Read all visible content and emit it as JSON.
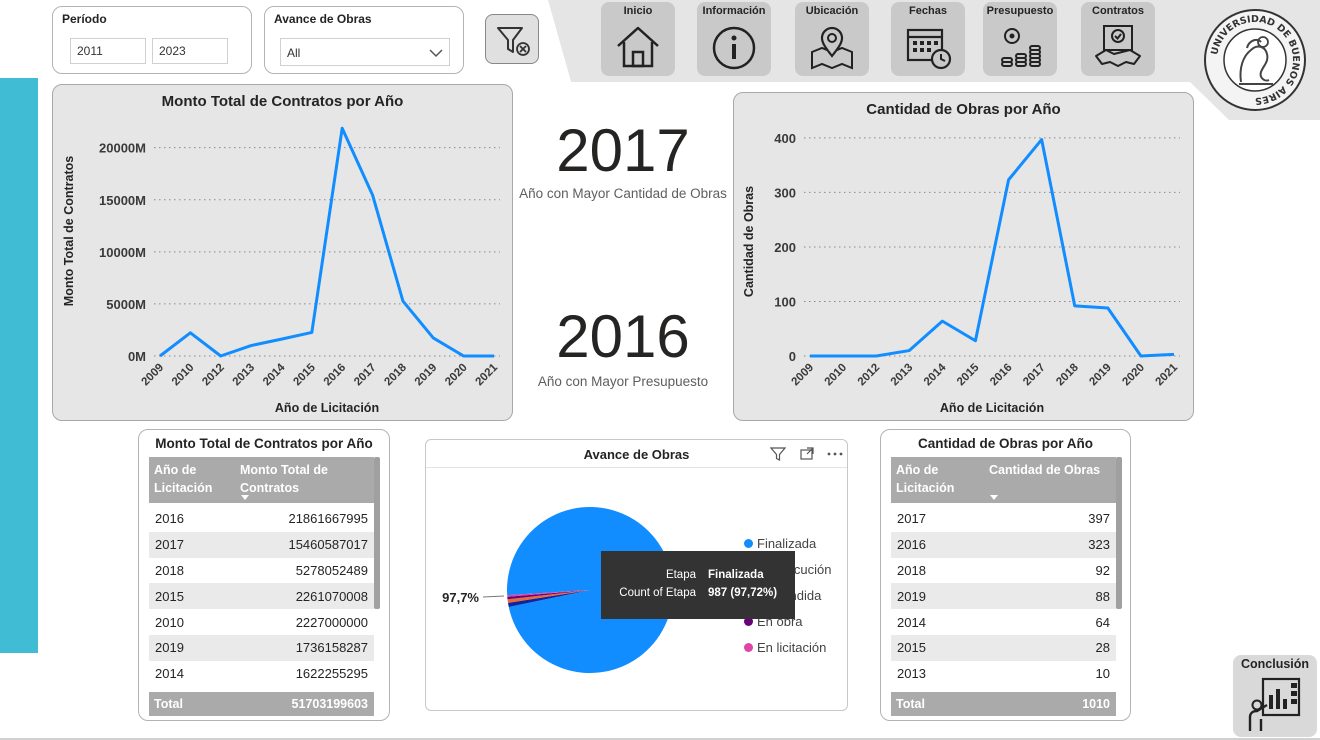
{
  "filters": {
    "period": {
      "title": "Período",
      "from": "2011",
      "to": "2023"
    },
    "avance": {
      "title": "Avance de Obras",
      "selected": "All"
    }
  },
  "nav": [
    {
      "label": "Inicio",
      "icon": "home-icon"
    },
    {
      "label": "Información",
      "icon": "info-icon"
    },
    {
      "label": "Ubicación",
      "icon": "map-pin-icon"
    },
    {
      "label": "Fechas",
      "icon": "calendar-icon"
    },
    {
      "label": "Presupuesto",
      "icon": "coins-icon"
    },
    {
      "label": "Contratos",
      "icon": "handshake-icon"
    }
  ],
  "logo": {
    "icon": "university-seal-icon",
    "text": "UNIVERSIDAD DE BUENOS AIRES"
  },
  "kpi1": {
    "value": "2017",
    "label": "Año con Mayor Cantidad de Obras"
  },
  "kpi2": {
    "value": "2016",
    "label": "Año con Mayor Presupuesto"
  },
  "chart_data": [
    {
      "type": "line",
      "title": "Monto Total de Contratos por Año",
      "xlabel": "Año de Licitación",
      "ylabel": "Monto Total de Contratos",
      "x": [
        "2009",
        "2010",
        "2012",
        "2013",
        "2014",
        "2015",
        "2016",
        "2017",
        "2018",
        "2019",
        "2020",
        "2021"
      ],
      "values": [
        0,
        2227000000,
        0,
        1000000000,
        1622255295,
        2261070008,
        21861667995,
        15460587017,
        5278052489,
        1736158287,
        0,
        0
      ],
      "yticks": [
        "0M",
        "5000M",
        "10000M",
        "15000M",
        "20000M"
      ],
      "ylim": [
        0,
        24000000000
      ],
      "color": "#118dff",
      "grid": true
    },
    {
      "type": "line",
      "title": "Cantidad de Obras por Año",
      "xlabel": "Año de Licitación",
      "ylabel": "Cantidad de Obras",
      "x": [
        "2009",
        "2010",
        "2012",
        "2013",
        "2014",
        "2015",
        "2016",
        "2017",
        "2018",
        "2019",
        "2020",
        "2021"
      ],
      "values": [
        0,
        0,
        0,
        10,
        64,
        28,
        323,
        397,
        92,
        88,
        0,
        3
      ],
      "yticks": [
        "0",
        "100",
        "200",
        "300",
        "400"
      ],
      "ylim": [
        0,
        420
      ],
      "color": "#118dff",
      "grid": true
    },
    {
      "type": "pie",
      "title": "Avance de Obras",
      "labels": [
        "Finalizada",
        "En ejecución",
        "Rescindida",
        "En obra",
        "En licitación"
      ],
      "values": [
        987,
        8,
        7,
        5,
        3
      ],
      "colors": [
        "#118dff",
        "#12239e",
        "#e66c37",
        "#6b007b",
        "#e044a7"
      ],
      "data_label": "97,7%"
    }
  ],
  "table1": {
    "title": "Monto Total de Contratos por Año",
    "col1": "Año de Licitación",
    "col2": "Monto Total de Contratos",
    "rows": [
      [
        "2016",
        "21861667995"
      ],
      [
        "2017",
        "15460587017"
      ],
      [
        "2018",
        "5278052489"
      ],
      [
        "2015",
        "2261070008"
      ],
      [
        "2010",
        "2227000000"
      ],
      [
        "2019",
        "1736158287"
      ],
      [
        "2014",
        "1622255295"
      ]
    ],
    "total_label": "Total",
    "total_value": "51703199603"
  },
  "table2": {
    "title": "Cantidad de Obras por Año",
    "col1": "Año de Licitación",
    "col2": "Cantidad de Obras",
    "rows": [
      [
        "2017",
        "397"
      ],
      [
        "2016",
        "323"
      ],
      [
        "2018",
        "92"
      ],
      [
        "2019",
        "88"
      ],
      [
        "2014",
        "64"
      ],
      [
        "2015",
        "28"
      ],
      [
        "2013",
        "10"
      ]
    ],
    "total_label": "Total",
    "total_value": "1010"
  },
  "tooltip": {
    "k1": "Etapa",
    "v1": "Finalizada",
    "k2": "Count of Etapa",
    "v2": "987 (97,72%)"
  },
  "conclusion": {
    "label": "Conclusión",
    "icon": "presentation-icon"
  }
}
